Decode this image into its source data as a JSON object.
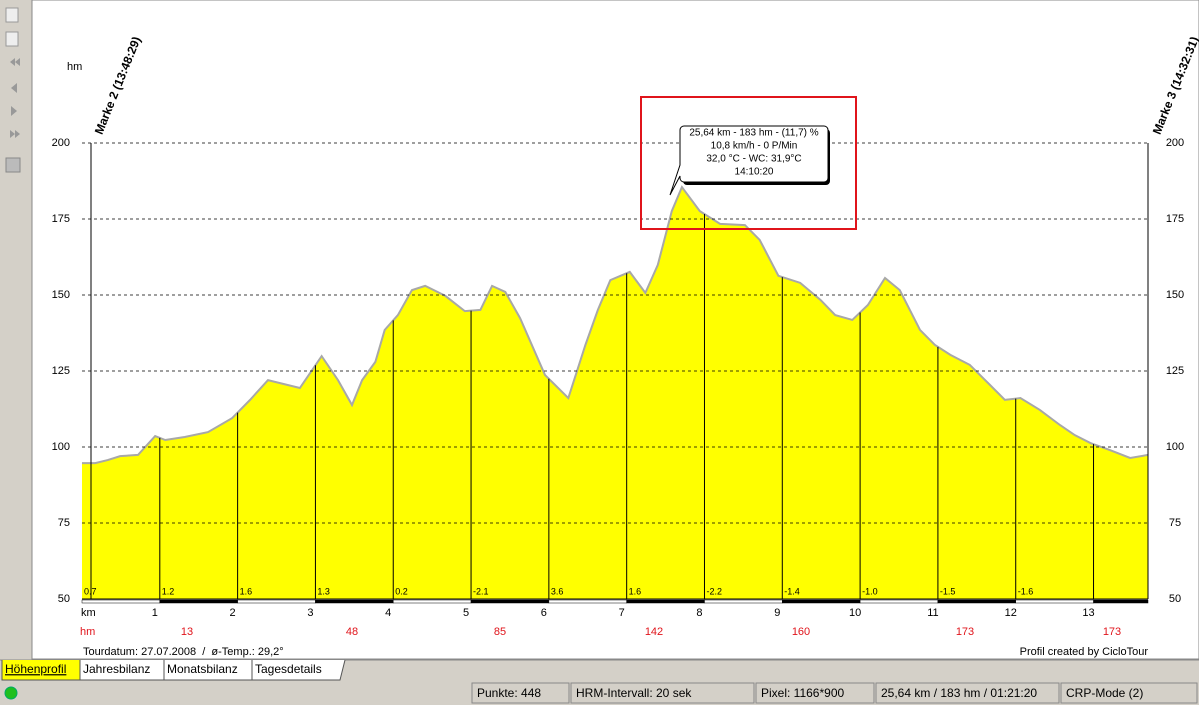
{
  "chart_data": {
    "type": "area",
    "y_unit": "hm",
    "x_unit": "km",
    "x": [
      0,
      0.17,
      0.33,
      0.49,
      0.72,
      0.94,
      1.07,
      1.32,
      1.62,
      1.93,
      2.16,
      2.39,
      2.8,
      3.08,
      3.29,
      3.47,
      3.6,
      3.77,
      3.89,
      4.06,
      4.24,
      4.41,
      4.67,
      4.92,
      5.12,
      5.27,
      5.44,
      5.63,
      5.95,
      6.25,
      6.47,
      6.63,
      6.79,
      7.04,
      7.24,
      7.4,
      7.58,
      7.71,
      7.94,
      8.2,
      8.52,
      8.71,
      8.95,
      9.23,
      9.49,
      9.68,
      9.9,
      10.1,
      10.32,
      10.51,
      10.77,
      10.96,
      11.16,
      11.41,
      11.67,
      11.86,
      12.06,
      12.31,
      12.57,
      12.76,
      12.96,
      13.21,
      13.47,
      13.7
    ],
    "values": [
      94.7,
      94.7,
      95.7,
      97,
      97.4,
      103.6,
      102.3,
      103.3,
      104.9,
      109.5,
      115.5,
      122,
      119.4,
      129.9,
      122,
      113.8,
      122,
      128,
      138.5,
      143.4,
      151.6,
      153,
      149.7,
      144.7,
      145.1,
      153,
      151,
      142.4,
      123.7,
      116.1,
      133.6,
      145.1,
      154.9,
      157.6,
      150.7,
      159.9,
      177.6,
      185.5,
      177.6,
      173.4,
      173,
      168.1,
      156.3,
      154,
      148.4,
      143.4,
      141.8,
      146.7,
      155.6,
      151.6,
      138.5,
      133.6,
      130.3,
      127,
      120.4,
      115.5,
      116.1,
      112.2,
      107.2,
      103.9,
      101.3,
      99,
      96.4,
      97.4
    ],
    "color": "#ffff00",
    "line_color": "#a8a8a8",
    "xlim": [
      0,
      13.7
    ],
    "xticks": [
      1,
      2,
      3,
      4,
      5,
      6,
      7,
      8,
      9,
      10,
      11,
      12,
      13
    ],
    "ylim": [
      50,
      200
    ],
    "yticks": [
      50,
      75,
      100,
      125,
      150,
      175,
      200
    ],
    "grid": true,
    "grades": [
      0.7,
      1.2,
      1.6,
      1.3,
      0.2,
      -2.1,
      3.6,
      1.6,
      -2.2,
      -1.4,
      -1.0,
      -1.5,
      -1.6
    ],
    "grade_labels": [
      "0.7",
      "1.2",
      "1.6",
      "1.3",
      "0.2",
      "-2.1",
      "3.6",
      "1.6",
      "-2.2",
      "-1.4",
      "-1.0",
      "-1.5",
      "-1.6"
    ],
    "climb_unit": "hm",
    "climb_values": [
      13,
      48,
      85,
      142,
      160,
      173,
      173
    ],
    "markers": [
      "Marke 2 (13:48:29)",
      "Marke 3 (14:32:31)"
    ],
    "tooltip": [
      "25,64 km - 183 hm - (11,7) %",
      "10,8 km/h - 0 P/Min",
      "32,0 °C - WC: 31,9°C",
      "14:10:20"
    ],
    "footer_left": "Tourdatum: 27.07.2008  /  ø-Temp.: 29,2°",
    "footer_right": "Profil created by CicloTour"
  },
  "tabs": [
    "Höhenprofil",
    "Jahresbilanz",
    "Monatsbilanz",
    "Tagesdetails"
  ],
  "status": [
    "Punkte: 448",
    "HRM-Intervall: 20 sek",
    "Pixel: 1166*900",
    "25,64 km / 183 hm / 01:21:20",
    "CRP-Mode (2)"
  ]
}
